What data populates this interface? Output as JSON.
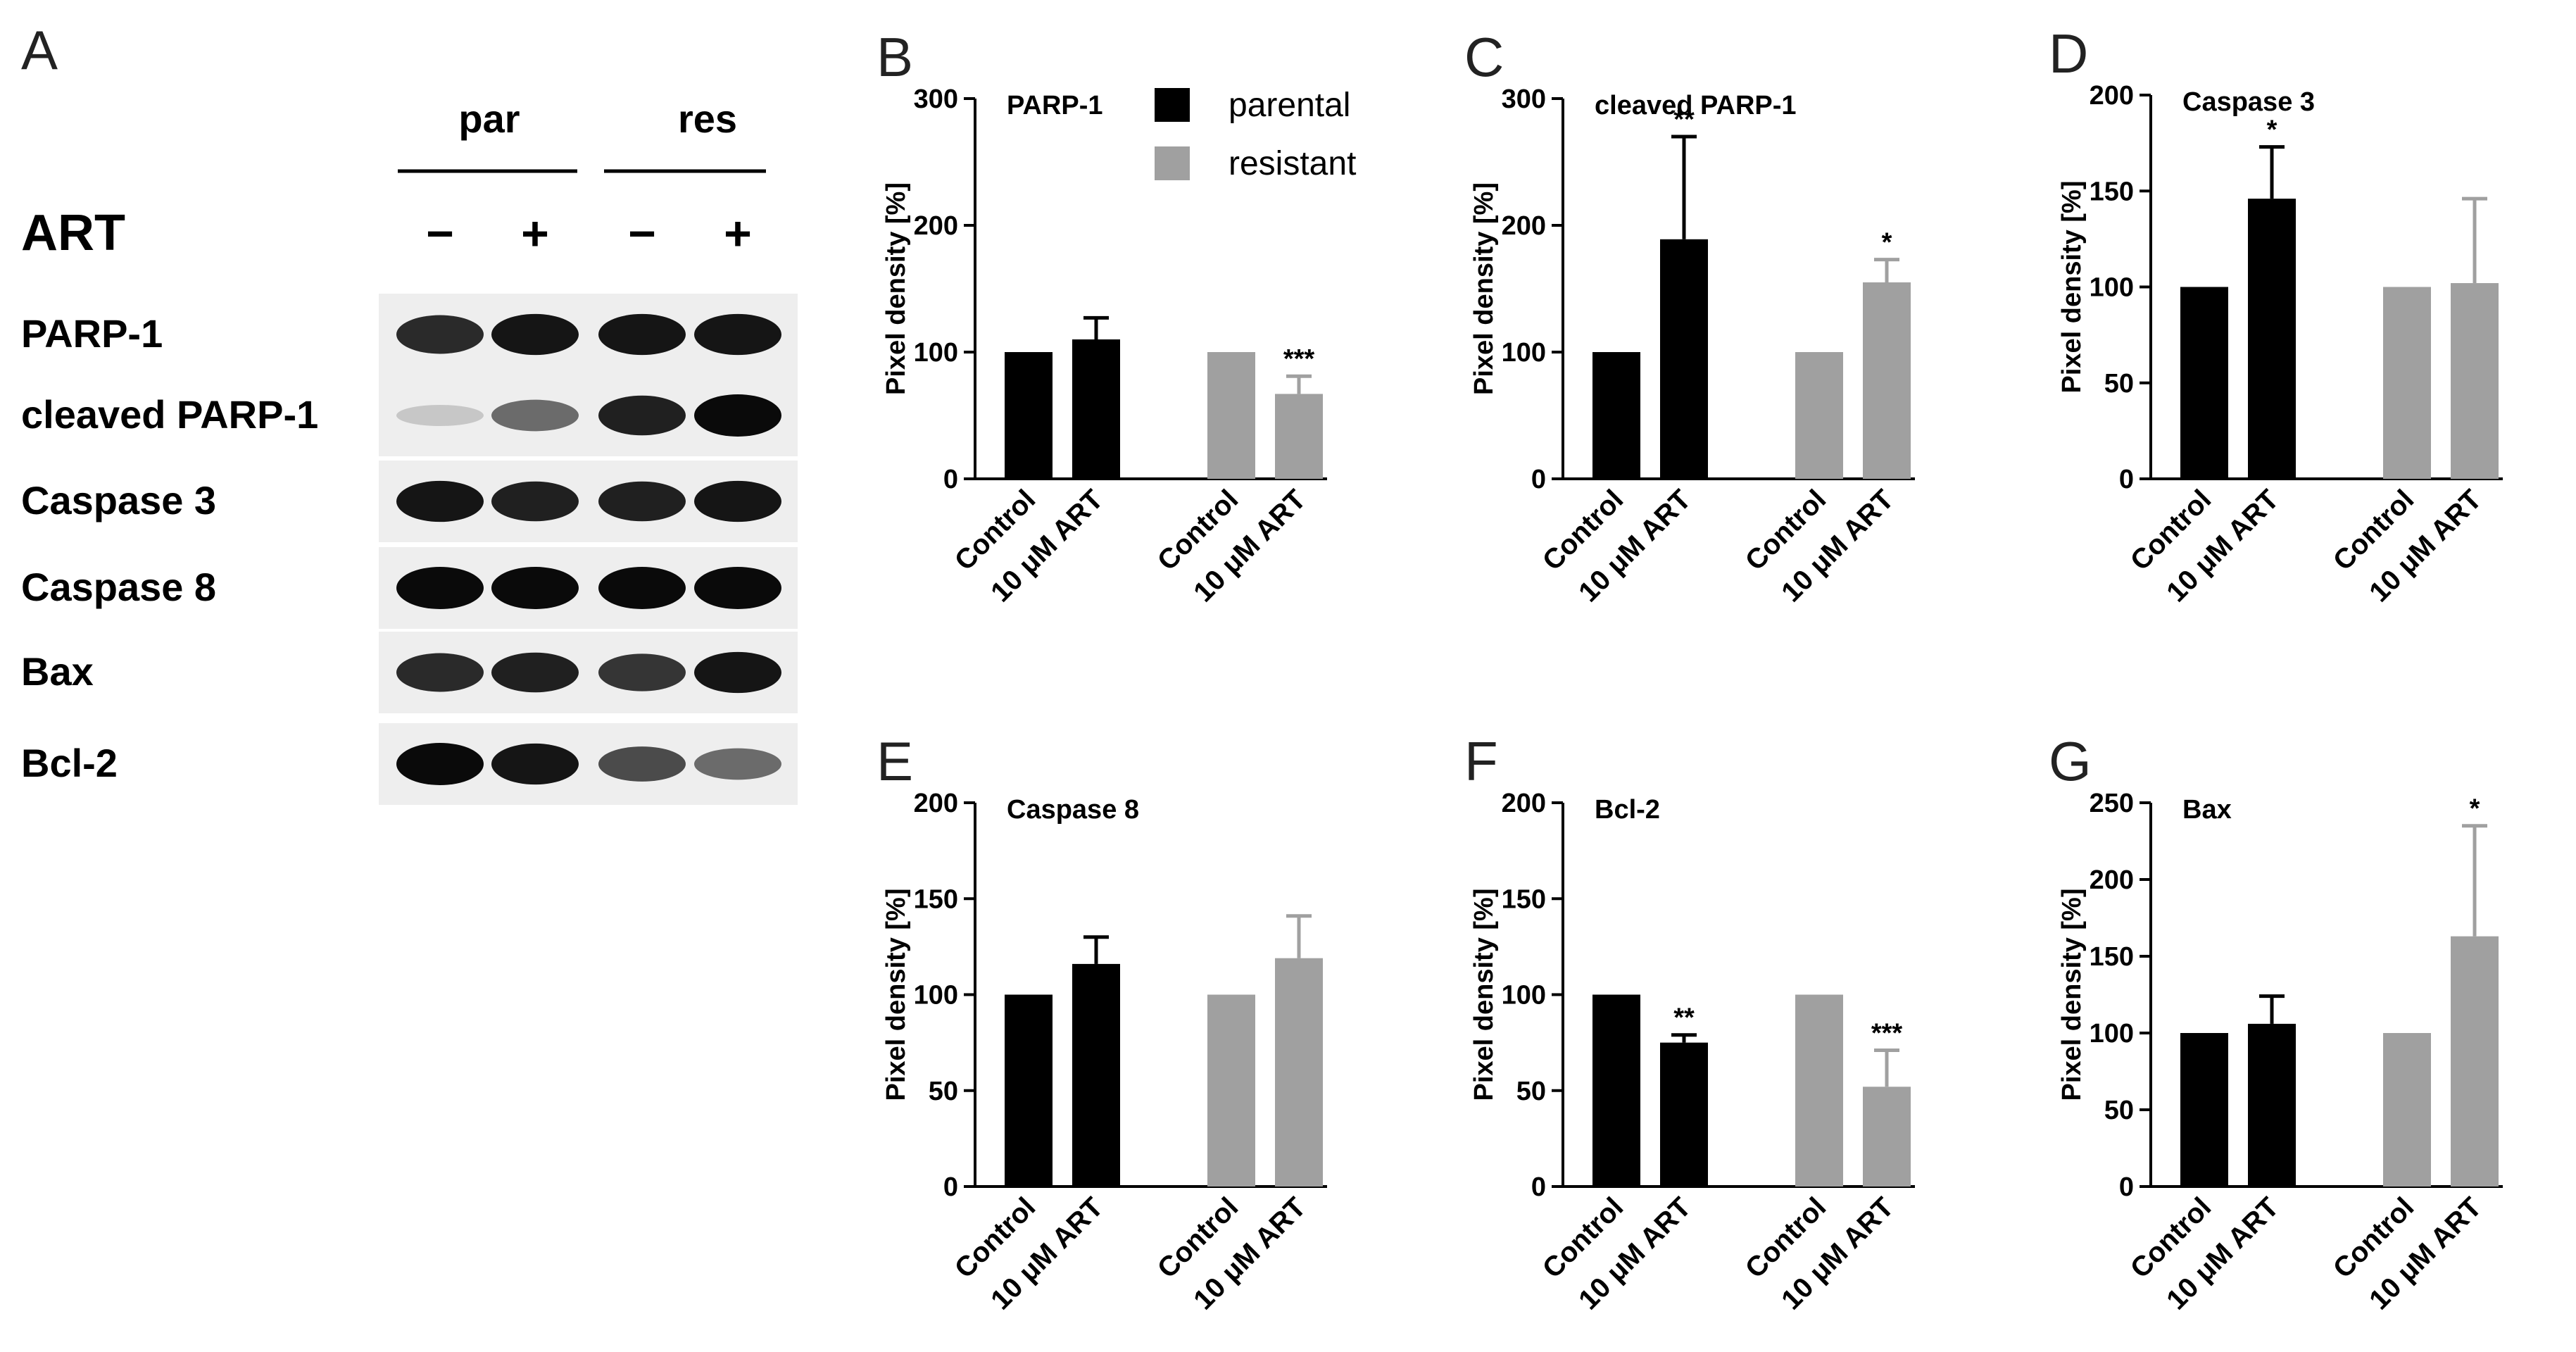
{
  "panel_letters": [
    "A",
    "B",
    "C",
    "D",
    "E",
    "F",
    "G"
  ],
  "blot": {
    "group_labels": [
      "par",
      "res"
    ],
    "treatment_label": "ART",
    "signs": [
      "−",
      "+",
      "−",
      "+"
    ],
    "rows": [
      "PARP-1",
      "cleaved PARP-1",
      "Caspase 3",
      "Caspase 8",
      "Bax",
      "Bcl-2"
    ],
    "band_intensity": [
      [
        0.85,
        0.95,
        0.95,
        0.95
      ],
      [
        0.12,
        0.55,
        0.9,
        1.0
      ],
      [
        0.95,
        0.9,
        0.9,
        0.95
      ],
      [
        1.0,
        1.0,
        1.0,
        1.0
      ],
      [
        0.85,
        0.9,
        0.8,
        0.95
      ],
      [
        1.0,
        0.95,
        0.7,
        0.55
      ]
    ]
  },
  "legend": {
    "items": [
      {
        "label": "parental",
        "color": "#000000"
      },
      {
        "label": "resistant",
        "color": "#a0a0a0"
      }
    ]
  },
  "colors": {
    "parental": "#000000",
    "resistant": "#a0a0a0"
  },
  "chart_data": [
    {
      "panel": "B",
      "type": "bar",
      "title": "PARP-1",
      "ylabel": "Pixel density [%]",
      "ylim": [
        0,
        300
      ],
      "yticks": [
        0,
        100,
        200,
        300
      ],
      "categories": [
        "Control",
        "10 μM ART",
        "Control",
        "10 μM ART"
      ],
      "groups": [
        "parental",
        "parental",
        "resistant",
        "resistant"
      ],
      "values": [
        100,
        110,
        100,
        67
      ],
      "errors": [
        0,
        17,
        0,
        14
      ],
      "significance": [
        "",
        "",
        "",
        "***"
      ]
    },
    {
      "panel": "C",
      "type": "bar",
      "title": "cleaved PARP-1",
      "ylabel": "Pixel density [%]",
      "ylim": [
        0,
        300
      ],
      "yticks": [
        0,
        100,
        200,
        300
      ],
      "categories": [
        "Control",
        "10 μM ART",
        "Control",
        "10 μM ART"
      ],
      "groups": [
        "parental",
        "parental",
        "resistant",
        "resistant"
      ],
      "values": [
        100,
        189,
        100,
        155
      ],
      "errors": [
        0,
        81,
        0,
        18
      ],
      "significance": [
        "",
        "**",
        "",
        "*"
      ]
    },
    {
      "panel": "D",
      "type": "bar",
      "title": "Caspase 3",
      "ylabel": "Pixel density [%]",
      "ylim": [
        0,
        200
      ],
      "yticks": [
        0,
        50,
        100,
        150,
        200
      ],
      "categories": [
        "Control",
        "10 μM ART",
        "Control",
        "10 μM ART"
      ],
      "groups": [
        "parental",
        "parental",
        "resistant",
        "resistant"
      ],
      "values": [
        100,
        146,
        100,
        102
      ],
      "errors": [
        0,
        27,
        0,
        44
      ],
      "significance": [
        "",
        "*",
        "",
        ""
      ]
    },
    {
      "panel": "E",
      "type": "bar",
      "title": "Caspase 8",
      "ylabel": "Pixel density [%]",
      "ylim": [
        0,
        200
      ],
      "yticks": [
        0,
        50,
        100,
        150,
        200
      ],
      "categories": [
        "Control",
        "10 μM ART",
        "Control",
        "10 μM ART"
      ],
      "groups": [
        "parental",
        "parental",
        "resistant",
        "resistant"
      ],
      "values": [
        100,
        116,
        100,
        119
      ],
      "errors": [
        0,
        14,
        0,
        22
      ],
      "significance": [
        "",
        "",
        "",
        ""
      ]
    },
    {
      "panel": "F",
      "type": "bar",
      "title": "Bcl-2",
      "ylabel": "Pixel density [%]",
      "ylim": [
        0,
        200
      ],
      "yticks": [
        0,
        50,
        100,
        150,
        200
      ],
      "categories": [
        "Control",
        "10 μM ART",
        "Control",
        "10 μM ART"
      ],
      "groups": [
        "parental",
        "parental",
        "resistant",
        "resistant"
      ],
      "values": [
        100,
        75,
        100,
        52
      ],
      "errors": [
        0,
        4,
        0,
        19
      ],
      "significance": [
        "",
        "**",
        "",
        "***"
      ]
    },
    {
      "panel": "G",
      "type": "bar",
      "title": "Bax",
      "ylabel": "Pixel density [%]",
      "ylim": [
        0,
        250
      ],
      "yticks": [
        0,
        50,
        100,
        150,
        200,
        250
      ],
      "categories": [
        "Control",
        "10 μM ART",
        "Control",
        "10 μM ART"
      ],
      "groups": [
        "parental",
        "parental",
        "resistant",
        "resistant"
      ],
      "values": [
        100,
        106,
        100,
        163
      ],
      "errors": [
        0,
        18,
        0,
        72
      ],
      "significance": [
        "",
        "",
        "",
        "*"
      ]
    }
  ]
}
